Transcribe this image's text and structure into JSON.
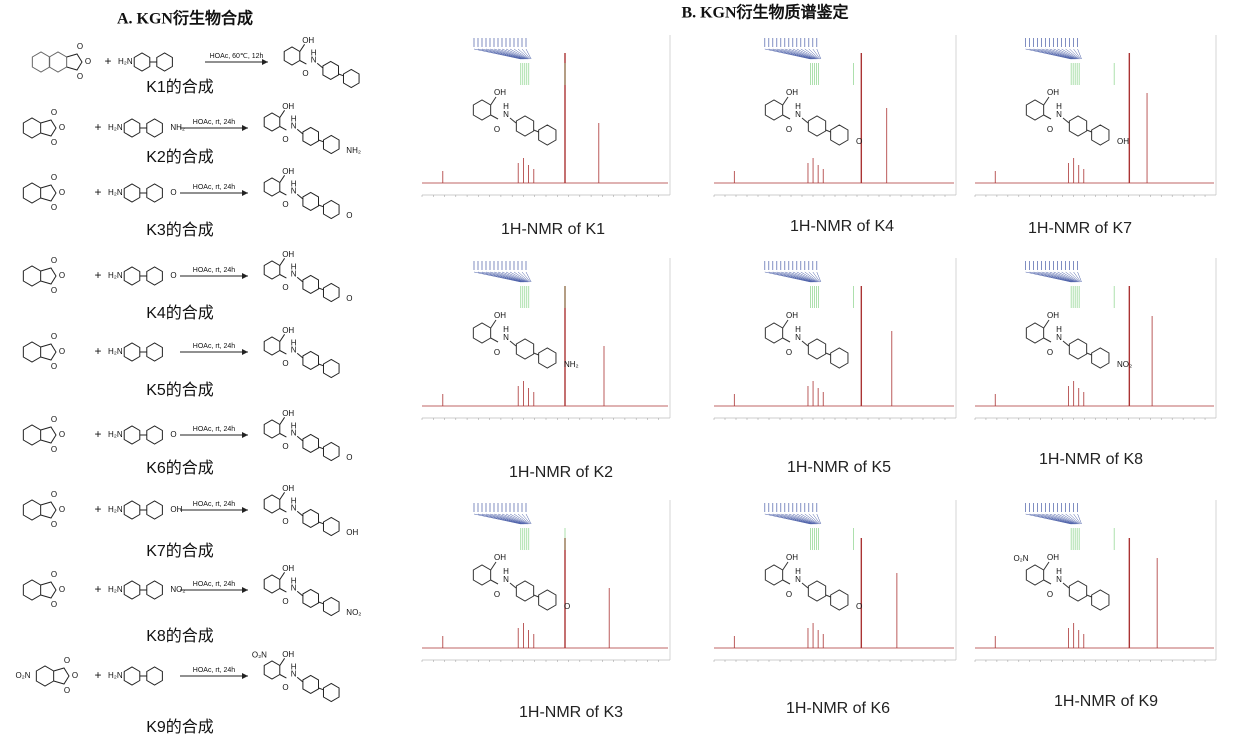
{
  "panel_a": {
    "title": "A. KGN衍生物合成",
    "anhydride_atom": "O",
    "amine_group": "H₂N",
    "product_atoms": {
      "acid": "OH",
      "amide_n": "N",
      "amide_h": "H",
      "carbonyl": "O"
    },
    "reactions": [
      {
        "label": "K1的合成",
        "conditions": "HOAc, 60℃, 12h"
      },
      {
        "label": "K2的合成",
        "conditions": "HOAc, rt, 24h",
        "substituent": "NH₂"
      },
      {
        "label": "K3的合成",
        "conditions": "HOAc, rt, 24h",
        "substituent": "O"
      },
      {
        "label": "K4的合成",
        "conditions": "HOAc, rt, 24h",
        "substituent": "O"
      },
      {
        "label": "K5的合成",
        "conditions": "HOAc, rt, 24h"
      },
      {
        "label": "K6的合成",
        "conditions": "HOAc, rt, 24h",
        "substituent": "O"
      },
      {
        "label": "K7的合成",
        "conditions": "HOAc, rt, 24h",
        "substituent": "OH"
      },
      {
        "label": "K8的合成",
        "conditions": "HOAc, rt, 24h",
        "substituent": "NO₂"
      },
      {
        "label": "K9的合成",
        "conditions": "HOAc, rt, 24h",
        "ring_substituent": "O₂N"
      }
    ]
  },
  "panel_b": {
    "title": "B. KGN衍生物质谱鉴定",
    "spectra": [
      {
        "caption": "1H-NMR of K1",
        "reaction": 0
      },
      {
        "caption": "1H-NMR of K4",
        "reaction": 3
      },
      {
        "caption": "1H-NMR of K7",
        "reaction": 6
      },
      {
        "caption": "1H-NMR of K2",
        "reaction": 1
      },
      {
        "caption": "1H-NMR of K5",
        "reaction": 4
      },
      {
        "caption": "1H-NMR of K8",
        "reaction": 7
      },
      {
        "caption": "1H-NMR of K3",
        "reaction": 2
      },
      {
        "caption": "1H-NMR of K6",
        "reaction": 5
      },
      {
        "caption": "1H-NMR of K9",
        "reaction": 8
      }
    ]
  }
}
